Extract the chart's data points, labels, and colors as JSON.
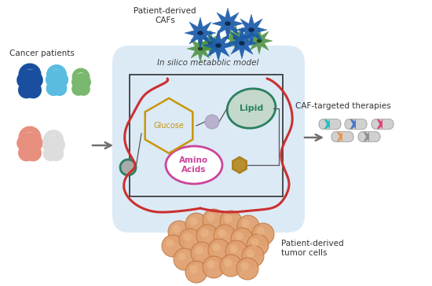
{
  "bg_color": "#ffffff",
  "box_bg": "#d8e8f5",
  "in_silico_label": "In silico metabolic model",
  "cancer_patients_label": "Cancer patients",
  "caf_label": "Patient-derived\nCAFs",
  "tumor_label": "Patient-derived\ntumor cells",
  "therapy_label": "CAF-targeted therapies",
  "glucose_label": "Glucose",
  "lipid_label": "Lipid",
  "amino_acids_label": "Amino\nAcids",
  "glucose_color": "#c8960a",
  "lipid_color": "#2a8060",
  "amino_color": "#cc4499",
  "person_colors": [
    "#1a4fa0",
    "#5abce0",
    "#7ab870",
    "#e89080",
    "#dddddd"
  ],
  "pill_colors": [
    "#20c0c0",
    "#4878cc",
    "#dc4878",
    "#e89850",
    "#909090"
  ],
  "arrow_color": "#707070",
  "red_line_color": "#cc3030",
  "caf_blue": "#1a5aaa",
  "caf_green": "#4a9040",
  "tumor_cell_color": "#e0a070",
  "tumor_cell_edge": "#c07840"
}
